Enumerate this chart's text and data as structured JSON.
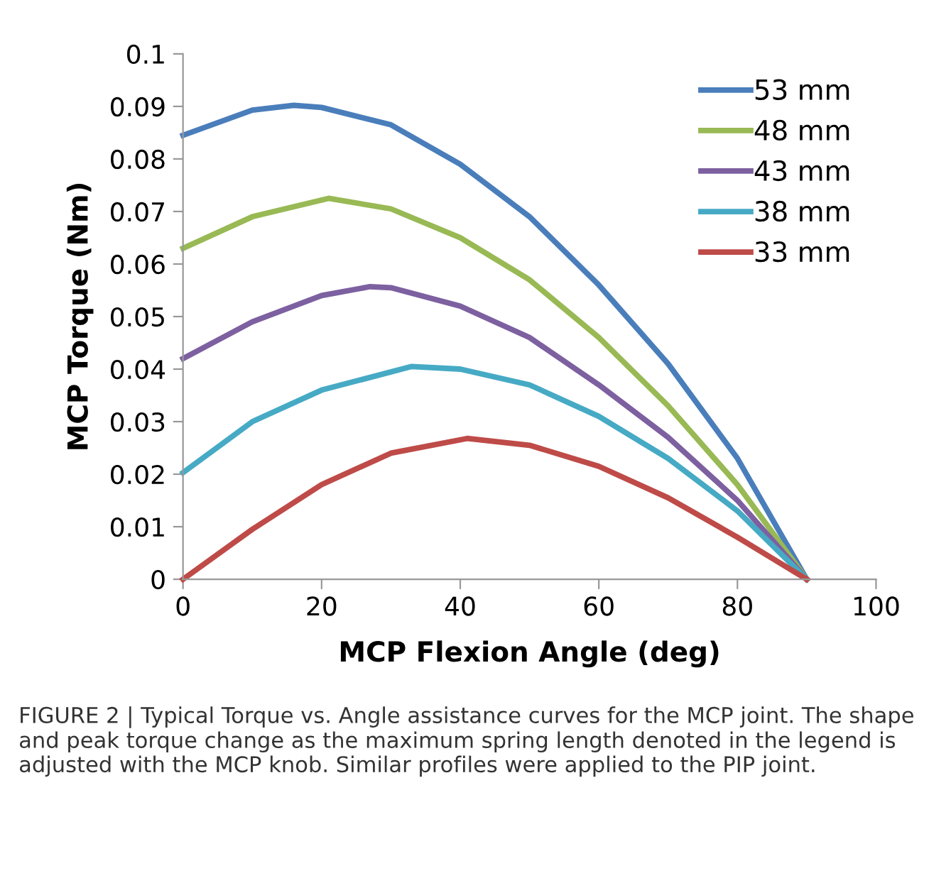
{
  "chart_data": {
    "type": "line",
    "xlabel": "MCP Flexion Angle (deg)",
    "ylabel": "MCP Torque (Nm)",
    "xlim": [
      0,
      100
    ],
    "xticks": [
      0,
      20,
      40,
      60,
      80,
      100
    ],
    "ylim": [
      0,
      0.1
    ],
    "yticks": [
      0,
      0.01,
      0.02,
      0.03,
      0.04,
      0.05,
      0.06,
      0.07,
      0.08,
      0.09,
      0.1
    ],
    "grid": false,
    "legend": "top right",
    "marker": "none",
    "line_style": "solid",
    "series": [
      {
        "name": "53 mm",
        "color": "#4a7ebb",
        "x": [
          0,
          10,
          16,
          20,
          30,
          40,
          50,
          60,
          70,
          80,
          90
        ],
        "values": [
          0.0845,
          0.0893,
          0.0902,
          0.0898,
          0.0865,
          0.079,
          0.069,
          0.056,
          0.041,
          0.023,
          0
        ]
      },
      {
        "name": "48 mm",
        "color": "#98b954",
        "x": [
          0,
          10,
          21,
          30,
          40,
          50,
          60,
          70,
          80,
          90
        ],
        "values": [
          0.063,
          0.069,
          0.0725,
          0.0705,
          0.065,
          0.057,
          0.046,
          0.033,
          0.018,
          0
        ]
      },
      {
        "name": "43 mm",
        "color": "#7d60a0",
        "x": [
          0,
          10,
          20,
          27,
          30,
          40,
          50,
          60,
          70,
          80,
          90
        ],
        "values": [
          0.042,
          0.049,
          0.054,
          0.0557,
          0.0555,
          0.052,
          0.046,
          0.037,
          0.027,
          0.015,
          0
        ]
      },
      {
        "name": "38 mm",
        "color": "#46aac5",
        "x": [
          0,
          10,
          20,
          33,
          40,
          50,
          60,
          70,
          80,
          90
        ],
        "values": [
          0.0203,
          0.03,
          0.036,
          0.0405,
          0.04,
          0.037,
          0.031,
          0.023,
          0.013,
          0
        ]
      },
      {
        "name": "33 mm",
        "color": "#be4b48",
        "x": [
          0,
          10,
          20,
          30,
          41,
          50,
          60,
          70,
          80,
          90
        ],
        "values": [
          0,
          0.0095,
          0.018,
          0.024,
          0.0268,
          0.0255,
          0.0215,
          0.0155,
          0.008,
          0
        ]
      }
    ],
    "annotations": [
      "FIGURE 2 | Typical Torque vs. Angle assistance curves for the MCP joint. The shape and peak torque change as the maximum spring length denoted in the legend is adjusted with the MCP knob. Similar profiles were applied to the PIP joint."
    ]
  }
}
